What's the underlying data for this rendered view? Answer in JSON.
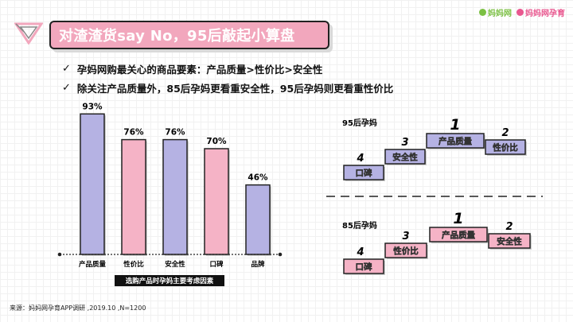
{
  "header": {
    "title": "对渣渣货say No，95后敲起小算盘",
    "brand_left": "妈妈网",
    "brand_right": "妈妈网孕育",
    "brand_green": "#7bc043",
    "brand_pink": "#e9578f"
  },
  "bullets": [
    "孕妈网购最关心的商品要素：产品质量>性价比>安全性",
    "除关注产品质量外，85后孕妈更看重安全性，95后孕妈则更看重性价比"
  ],
  "chart_data": {
    "type": "bar",
    "categories": [
      "产品质量",
      "性价比",
      "安全性",
      "口碑",
      "品牌"
    ],
    "values": [
      93,
      76,
      76,
      70,
      46
    ],
    "value_labels": [
      "93%",
      "76%",
      "76%",
      "70%",
      "46%"
    ],
    "colors": [
      "#b5b2e3",
      "#f5b3c6",
      "#b5b2e3",
      "#f5b3c6",
      "#b5b2e3"
    ],
    "ylim": [
      0,
      100
    ],
    "xlabel": "选购产品时孕妈主要考虑因素",
    "grid": false
  },
  "rankings": [
    {
      "group": "95后孕妈",
      "color": "#b5b2e3",
      "items": [
        {
          "rank": "4",
          "label": "口碑"
        },
        {
          "rank": "3",
          "label": "安全性"
        },
        {
          "rank": "1",
          "label": "产品质量"
        },
        {
          "rank": "2",
          "label": "性价比"
        }
      ]
    },
    {
      "group": "85后孕妈",
      "color": "#f5b3c6",
      "items": [
        {
          "rank": "4",
          "label": "口碑"
        },
        {
          "rank": "3",
          "label": "性价比"
        },
        {
          "rank": "1",
          "label": "产品质量"
        },
        {
          "rank": "2",
          "label": "安全性"
        }
      ]
    }
  ],
  "source": "来源：妈妈网孕育APP调研 ,2019.10 ,N=1200"
}
